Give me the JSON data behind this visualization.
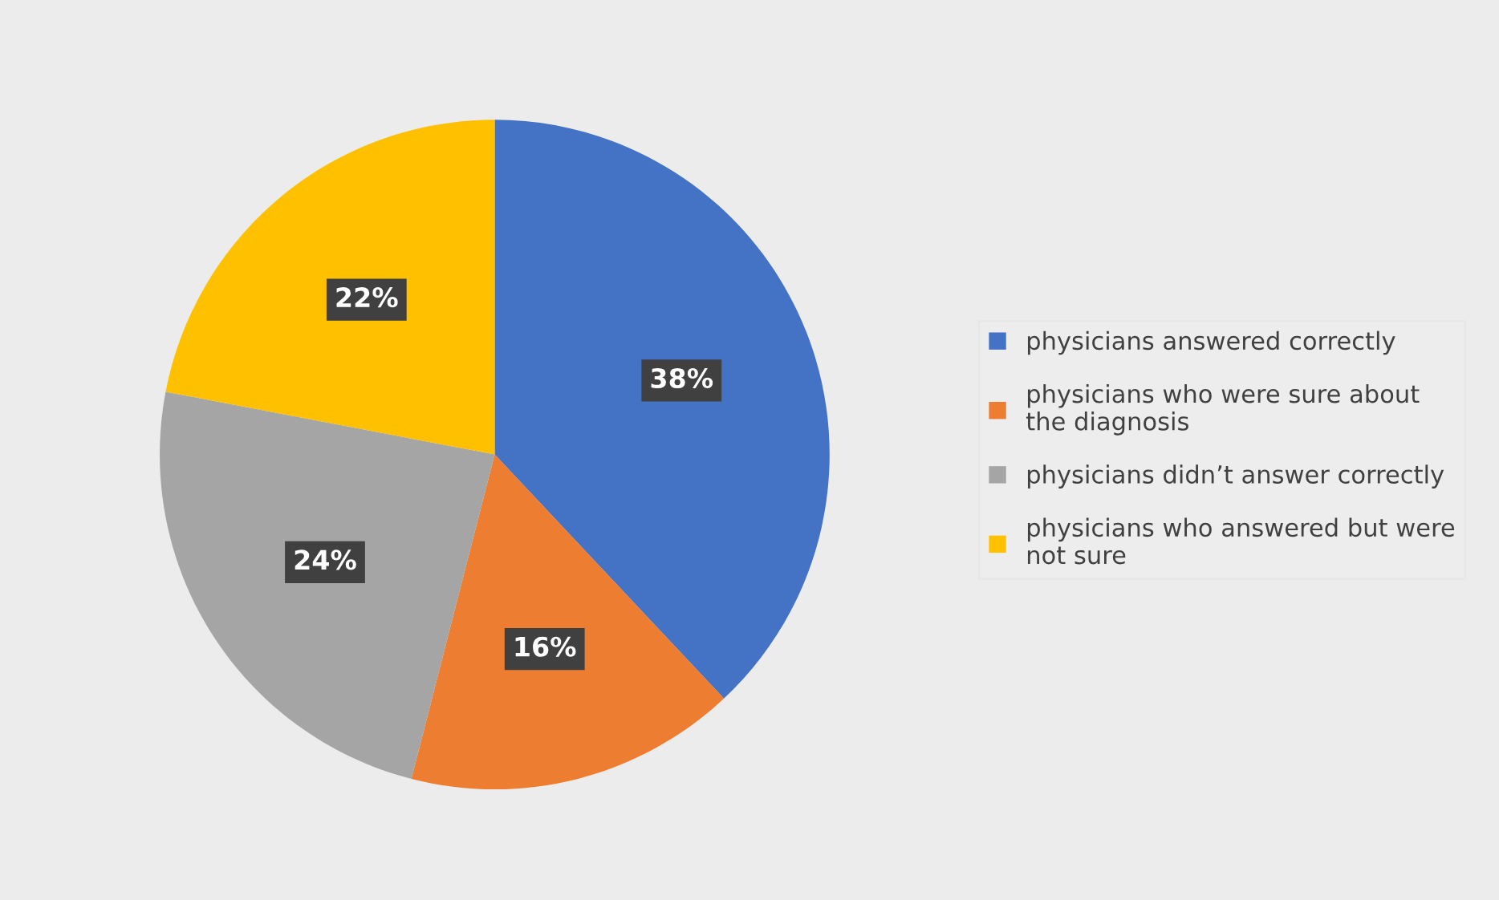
{
  "chart_data": {
    "type": "pie",
    "categories": [
      "physicians answered correctly",
      "physicians who were sure about the diagnosis",
      "physicians didn’t answer correctly",
      "physicians who answered but were not sure"
    ],
    "values": [
      38,
      16,
      24,
      22
    ],
    "colors": [
      "#4472c4",
      "#ed7d31",
      "#a5a5a5",
      "#ffc000"
    ],
    "value_labels": [
      "38%",
      "16%",
      "24%",
      "22%"
    ],
    "legend": "right"
  }
}
